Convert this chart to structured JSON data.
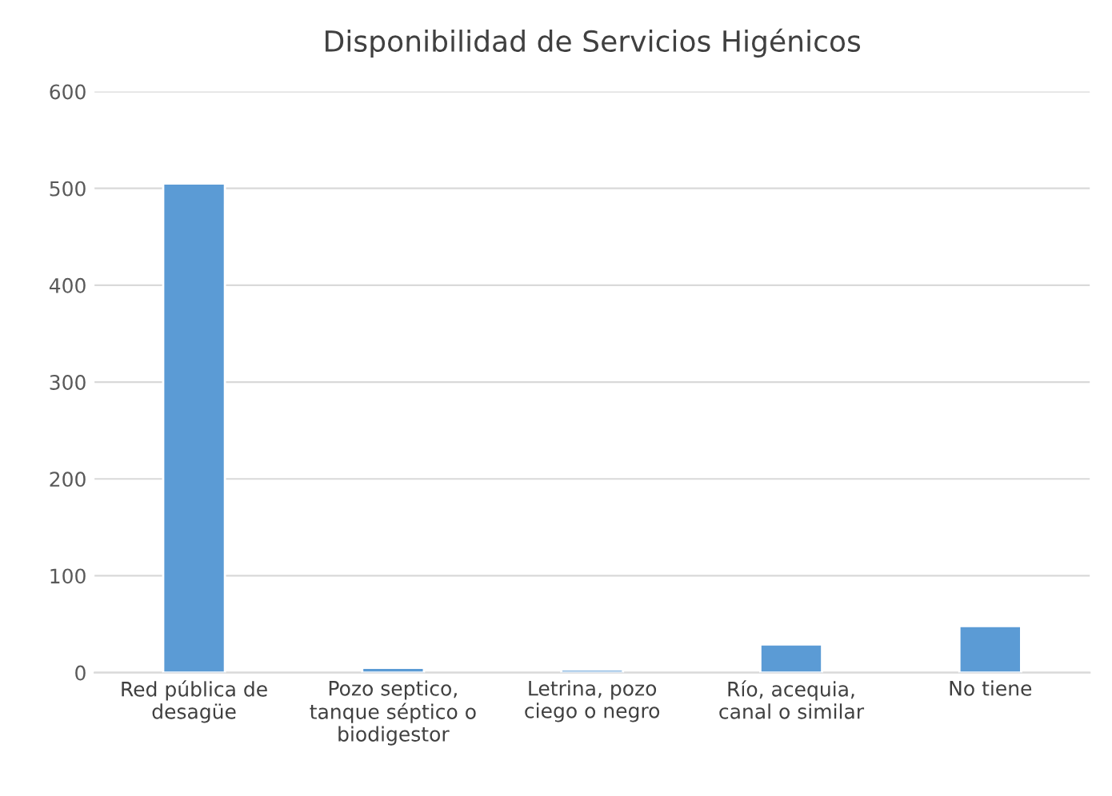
{
  "chart_data": {
    "type": "bar",
    "title": "Disponibilidad de Servicios Higénicos",
    "categories": [
      "Red pública de\ndesagüe",
      "Pozo septico,\ntanque séptico o\nbiodigestor",
      "Letrina, pozo\nciego o negro",
      "Río, acequia,\ncanal o similar",
      "No tiene"
    ],
    "values": [
      505,
      5,
      3,
      29,
      48
    ],
    "color": "#5b9bd5",
    "ylim": [
      0,
      600
    ],
    "yticks": [
      0,
      100,
      200,
      300,
      400,
      500,
      600
    ],
    "grid": "y",
    "legend": false
  }
}
